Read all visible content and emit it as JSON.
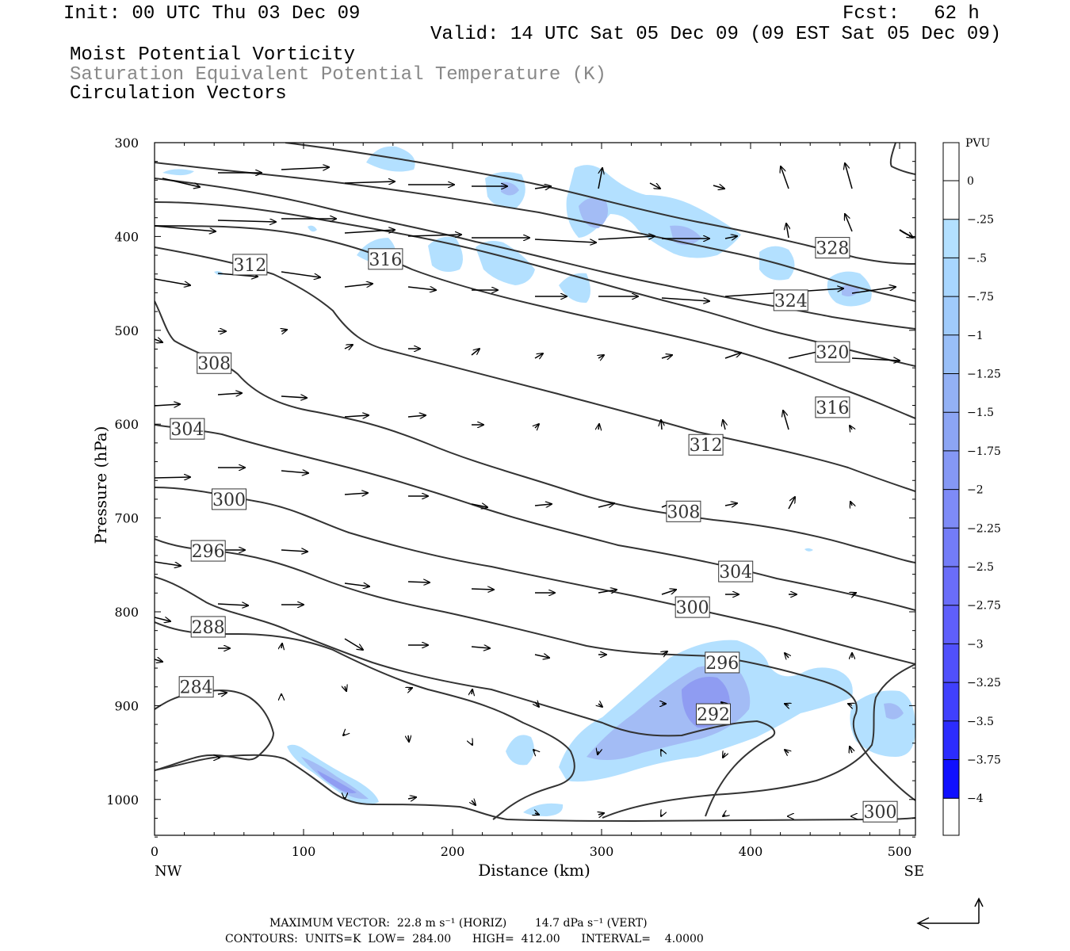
{
  "header": {
    "init": "Init: 00 UTC Thu 03 Dec 09",
    "fcst": "Fcst:   62 h",
    "valid": "Valid: 14 UTC Sat 05 Dec 09 (09 EST Sat 05 Dec 09)",
    "field1": "Moist Potential Vorticity",
    "field2": "Saturation Equivalent Potential Temperature (K)",
    "field3": "Circulation Vectors"
  },
  "footer": {
    "line1": "MAXIMUM VECTOR:  22.8 m s⁻¹ (HORIZ)        14.7 dPa s⁻¹ (VERT)",
    "line2": "CONTOURS:  UNITS=K  LOW=  284.00      HIGH=  412.00      INTERVAL=    4.0000"
  },
  "colors": {
    "shade_light": "#b3e0ff",
    "shade_mid": "#a3bcf5",
    "shade_dark": "#8f9cf2",
    "contour": "#333333"
  },
  "chart_data": {
    "type": "contour",
    "xlabel": "Distance (km)",
    "ylabel": "Pressure (hPa)",
    "xlim": [
      0,
      510
    ],
    "ylim": [
      1040,
      300
    ],
    "x_ticks": [
      0,
      100,
      200,
      300,
      400,
      500
    ],
    "y_ticks": [
      300,
      400,
      500,
      600,
      700,
      800,
      900,
      1000
    ],
    "x_end_labels": {
      "left": "NW",
      "right": "SE"
    },
    "colorbar": {
      "unit": "PVU",
      "levels": [
        "0",
        "-.25",
        "-.5",
        "-.75",
        "-1",
        "-1.25",
        "-1.5",
        "-1.75",
        "-2",
        "-2.25",
        "-2.5",
        "-2.75",
        "-3",
        "-3.25",
        "-3.5",
        "-3.75",
        "-4"
      ],
      "colors": [
        "#ffffff",
        "#ffffff",
        "#b3e0ff",
        "#a8d6ff",
        "#a0cbfb",
        "#99bff8",
        "#93b1f5",
        "#8ca5f4",
        "#8598f5",
        "#7e8bf7",
        "#737cf8",
        "#6a6df9",
        "#5f5ffb",
        "#5050fc",
        "#4040fd",
        "#2c2cfe",
        "#1010ff"
      ]
    },
    "contour_labels": [
      {
        "text": "328",
        "x": 455,
        "p": 412
      },
      {
        "text": "324",
        "x": 427,
        "p": 468
      },
      {
        "text": "320",
        "x": 455,
        "p": 523
      },
      {
        "text": "316",
        "x": 455,
        "p": 582
      },
      {
        "text": "316",
        "x": 155,
        "p": 424
      },
      {
        "text": "312",
        "x": 64,
        "p": 430
      },
      {
        "text": "312",
        "x": 370,
        "p": 622
      },
      {
        "text": "308",
        "x": 40,
        "p": 535
      },
      {
        "text": "308",
        "x": 355,
        "p": 693
      },
      {
        "text": "304",
        "x": 22,
        "p": 605
      },
      {
        "text": "304",
        "x": 390,
        "p": 757
      },
      {
        "text": "300",
        "x": 50,
        "p": 680
      },
      {
        "text": "300",
        "x": 361,
        "p": 795
      },
      {
        "text": "300",
        "x": 487,
        "p": 1013
      },
      {
        "text": "296",
        "x": 36,
        "p": 735
      },
      {
        "text": "296",
        "x": 381,
        "p": 854
      },
      {
        "text": "292",
        "x": 375,
        "p": 909
      },
      {
        "text": "288",
        "x": 36,
        "p": 816
      },
      {
        "text": "284",
        "x": 28,
        "p": 880
      }
    ]
  }
}
